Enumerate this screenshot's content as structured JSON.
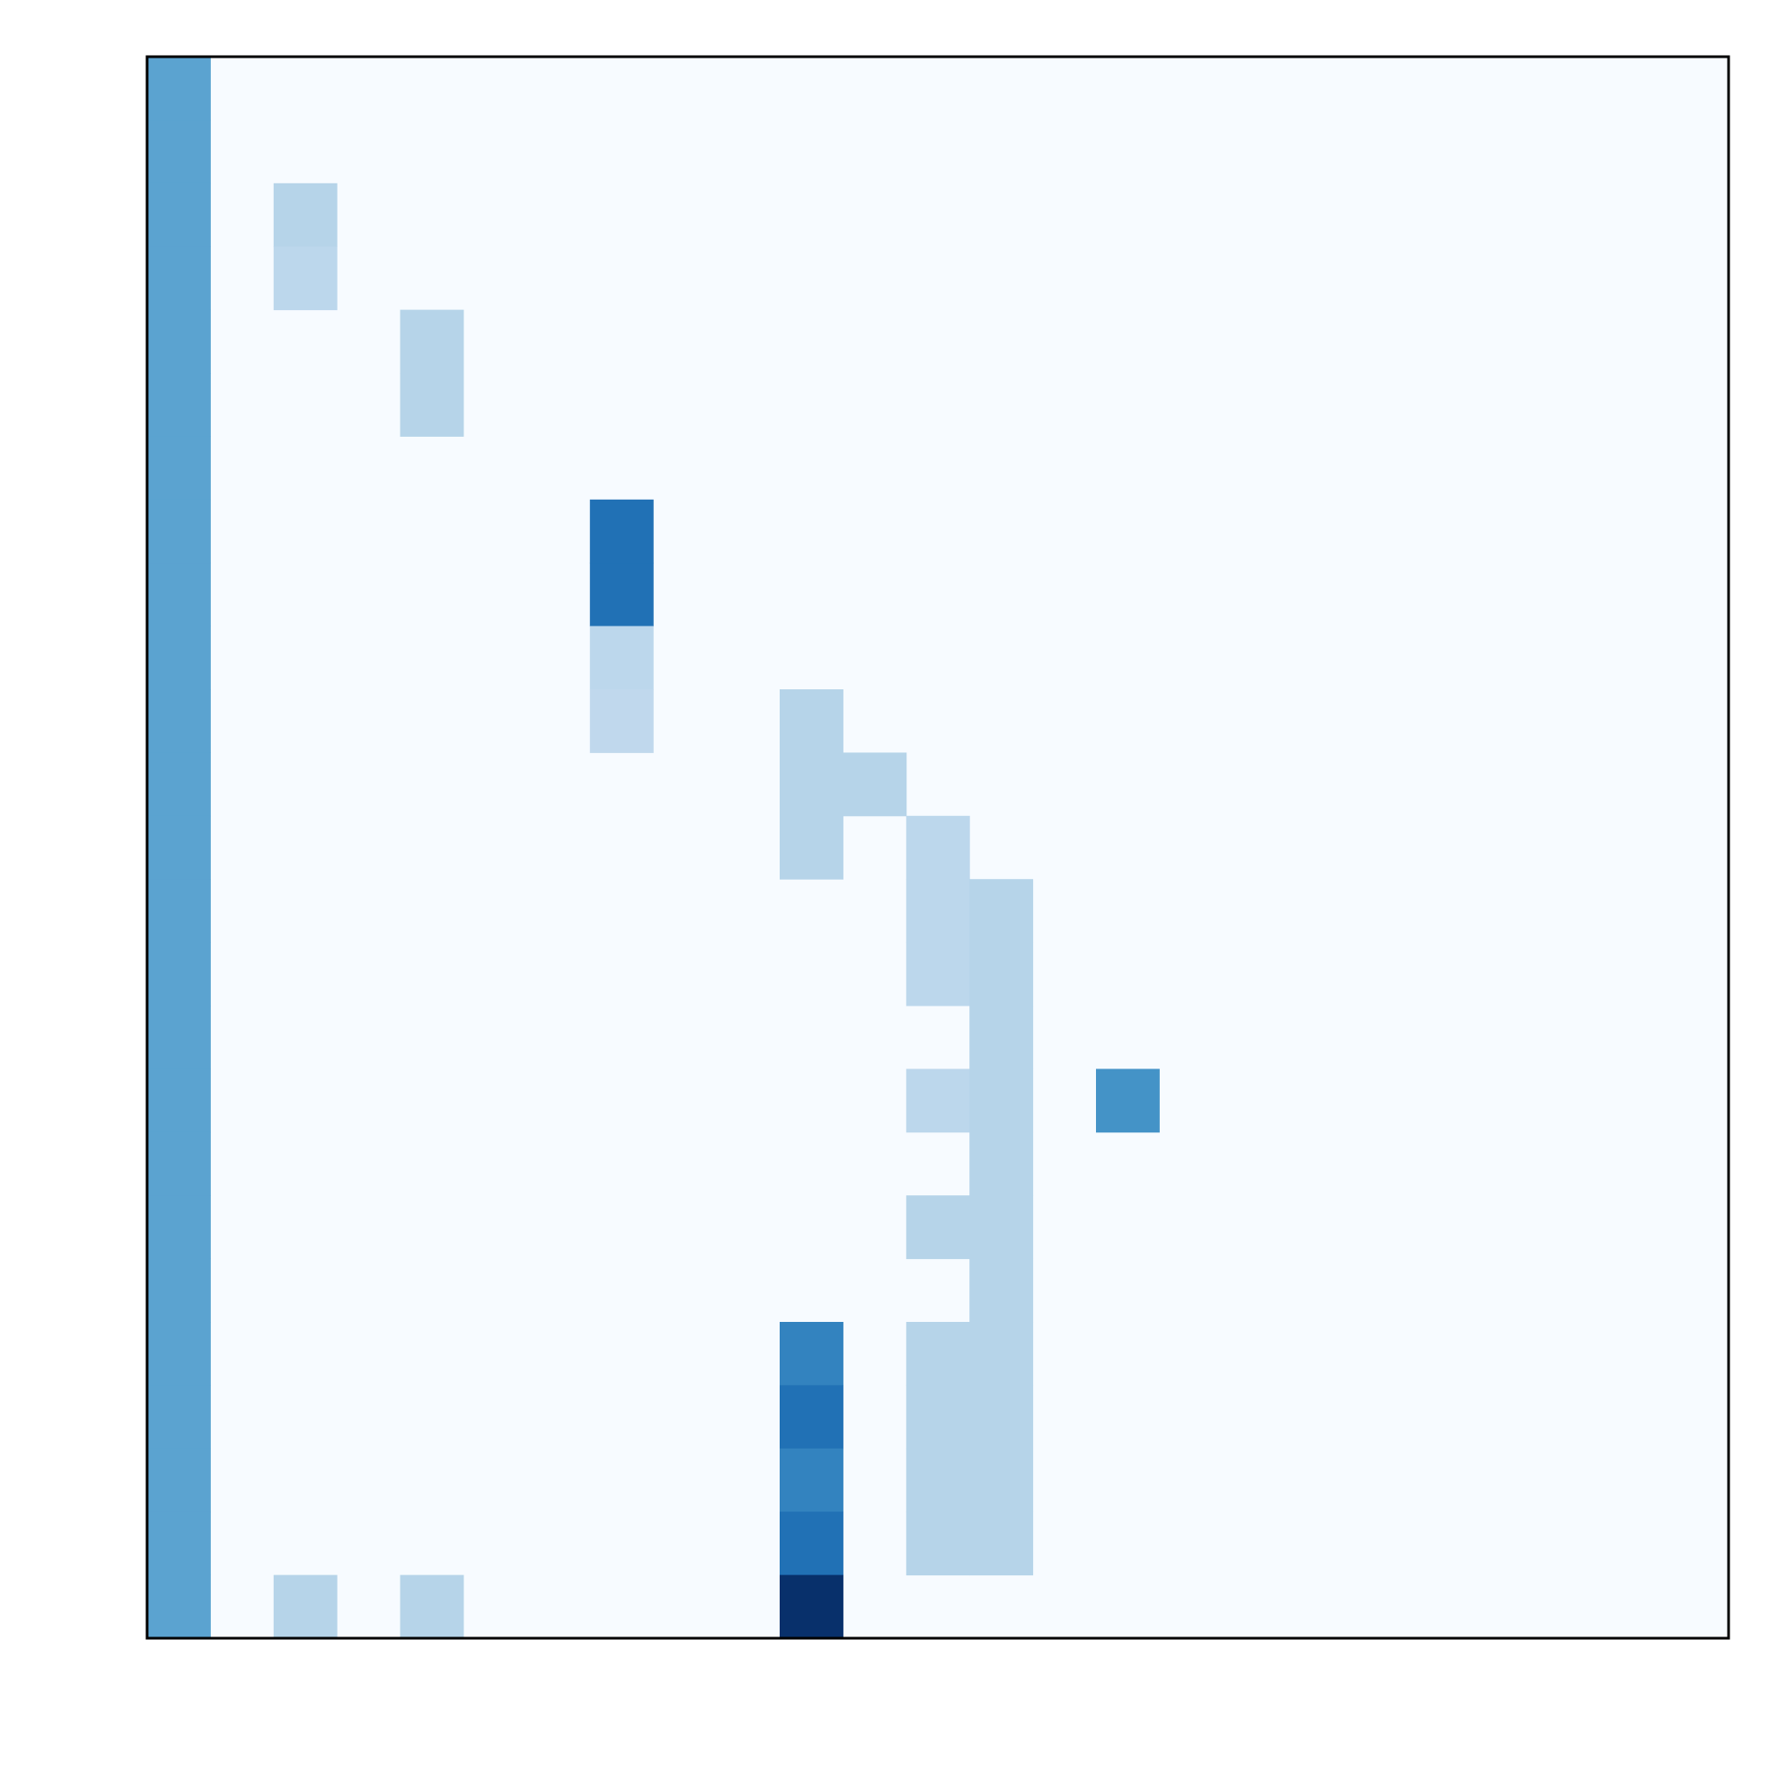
{
  "chart_data": {
    "type": "heatmap",
    "title": "",
    "xlabel": "",
    "ylabel": "",
    "n_cols": 25,
    "n_rows": 25,
    "value_range": [
      0,
      1
    ],
    "colormap": "Blues",
    "grid": false,
    "row_order": "top-to-bottom",
    "cells": [
      {
        "row": 0,
        "col": 0,
        "value": 0.55
      },
      {
        "row": 1,
        "col": 0,
        "value": 0.55
      },
      {
        "row": 2,
        "col": 0,
        "value": 0.55
      },
      {
        "row": 2,
        "col": 2,
        "value": 0.3
      },
      {
        "row": 3,
        "col": 0,
        "value": 0.55
      },
      {
        "row": 3,
        "col": 2,
        "value": 0.28
      },
      {
        "row": 4,
        "col": 0,
        "value": 0.55
      },
      {
        "row": 4,
        "col": 4,
        "value": 0.3
      },
      {
        "row": 5,
        "col": 0,
        "value": 0.55
      },
      {
        "row": 5,
        "col": 4,
        "value": 0.3
      },
      {
        "row": 6,
        "col": 0,
        "value": 0.55
      },
      {
        "row": 7,
        "col": 0,
        "value": 0.55
      },
      {
        "row": 7,
        "col": 7,
        "value": 0.75
      },
      {
        "row": 8,
        "col": 0,
        "value": 0.55
      },
      {
        "row": 8,
        "col": 7,
        "value": 0.75
      },
      {
        "row": 9,
        "col": 0,
        "value": 0.55
      },
      {
        "row": 9,
        "col": 7,
        "value": 0.28
      },
      {
        "row": 10,
        "col": 0,
        "value": 0.55
      },
      {
        "row": 10,
        "col": 7,
        "value": 0.27
      },
      {
        "row": 10,
        "col": 10,
        "value": 0.3
      },
      {
        "row": 11,
        "col": 0,
        "value": 0.55
      },
      {
        "row": 11,
        "col": 10,
        "value": 0.3
      },
      {
        "row": 11,
        "col": 11,
        "value": 0.3
      },
      {
        "row": 12,
        "col": 0,
        "value": 0.55
      },
      {
        "row": 12,
        "col": 10,
        "value": 0.3
      },
      {
        "row": 12,
        "col": 12,
        "value": 0.28
      },
      {
        "row": 13,
        "col": 0,
        "value": 0.55
      },
      {
        "row": 13,
        "col": 12,
        "value": 0.28
      },
      {
        "row": 13,
        "col": 13,
        "value": 0.3
      },
      {
        "row": 14,
        "col": 0,
        "value": 0.55
      },
      {
        "row": 14,
        "col": 12,
        "value": 0.28
      },
      {
        "row": 14,
        "col": 13,
        "value": 0.3
      },
      {
        "row": 15,
        "col": 0,
        "value": 0.55
      },
      {
        "row": 15,
        "col": 13,
        "value": 0.3
      },
      {
        "row": 16,
        "col": 0,
        "value": 0.55
      },
      {
        "row": 16,
        "col": 12,
        "value": 0.28
      },
      {
        "row": 16,
        "col": 13,
        "value": 0.3
      },
      {
        "row": 16,
        "col": 15,
        "value": 0.62
      },
      {
        "row": 17,
        "col": 0,
        "value": 0.55
      },
      {
        "row": 17,
        "col": 13,
        "value": 0.3
      },
      {
        "row": 18,
        "col": 0,
        "value": 0.55
      },
      {
        "row": 18,
        "col": 12,
        "value": 0.3
      },
      {
        "row": 18,
        "col": 13,
        "value": 0.3
      },
      {
        "row": 19,
        "col": 0,
        "value": 0.55
      },
      {
        "row": 19,
        "col": 13,
        "value": 0.3
      },
      {
        "row": 20,
        "col": 0,
        "value": 0.55
      },
      {
        "row": 20,
        "col": 10,
        "value": 0.68
      },
      {
        "row": 20,
        "col": 12,
        "value": 0.3
      },
      {
        "row": 20,
        "col": 13,
        "value": 0.3
      },
      {
        "row": 21,
        "col": 0,
        "value": 0.55
      },
      {
        "row": 21,
        "col": 10,
        "value": 0.75
      },
      {
        "row": 21,
        "col": 12,
        "value": 0.3
      },
      {
        "row": 21,
        "col": 13,
        "value": 0.3
      },
      {
        "row": 22,
        "col": 0,
        "value": 0.55
      },
      {
        "row": 22,
        "col": 10,
        "value": 0.68
      },
      {
        "row": 22,
        "col": 12,
        "value": 0.3
      },
      {
        "row": 22,
        "col": 13,
        "value": 0.3
      },
      {
        "row": 23,
        "col": 0,
        "value": 0.55
      },
      {
        "row": 23,
        "col": 10,
        "value": 0.75
      },
      {
        "row": 23,
        "col": 12,
        "value": 0.3
      },
      {
        "row": 23,
        "col": 13,
        "value": 0.3
      },
      {
        "row": 24,
        "col": 0,
        "value": 0.55
      },
      {
        "row": 24,
        "col": 2,
        "value": 0.3
      },
      {
        "row": 24,
        "col": 4,
        "value": 0.3
      },
      {
        "row": 24,
        "col": 10,
        "value": 1.0
      }
    ]
  }
}
